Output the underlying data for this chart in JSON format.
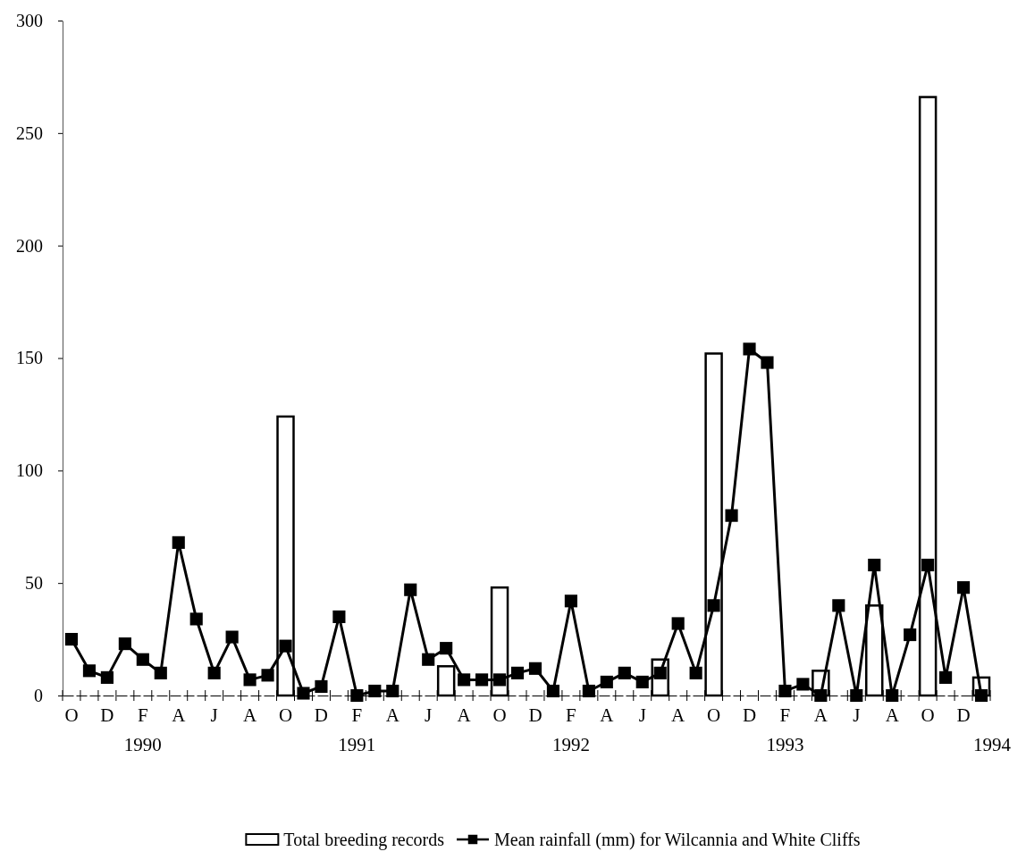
{
  "chart_data": {
    "type": "bar",
    "categories": [
      "O",
      null,
      "D",
      null,
      "F",
      null,
      "A",
      null,
      "J",
      null,
      "A",
      null,
      "O",
      null,
      "D",
      null,
      "F",
      null,
      "A",
      null,
      "J",
      null,
      "A",
      null,
      "O",
      null,
      "D",
      null,
      "F",
      null,
      "A",
      null,
      "J",
      null,
      "A",
      null,
      "O",
      null,
      "D",
      null,
      "F",
      null,
      "A",
      null,
      "J",
      null,
      "A",
      null,
      "O",
      null,
      "D",
      null
    ],
    "ylim": [
      0,
      300
    ],
    "yticks": [
      0,
      50,
      100,
      150,
      200,
      250,
      300
    ],
    "grid": false,
    "legend": "bottom",
    "marker": "square",
    "line_style": "solid",
    "annotations": [
      "1990",
      "1991",
      "1992",
      "1993",
      "1994"
    ],
    "series": [
      {
        "name": "Total breeding records",
        "color": "#ffffff",
        "values": [
          0,
          0,
          0,
          0,
          0,
          0,
          0,
          0,
          0,
          0,
          0,
          0,
          124,
          0,
          0,
          0,
          0,
          0,
          0,
          0,
          0,
          13,
          0,
          0,
          48,
          0,
          0,
          0,
          0,
          0,
          0,
          0,
          0,
          16,
          0,
          0,
          152,
          0,
          0,
          0,
          0,
          0,
          11,
          0,
          0,
          40,
          0,
          0,
          266,
          0,
          0,
          8
        ]
      },
      {
        "name": "Mean rainfall (mm) for Wilcannia and White Cliffs",
        "type": "line",
        "color": "#000000",
        "values": [
          25,
          11,
          8,
          23,
          16,
          10,
          68,
          34,
          10,
          26,
          7,
          9,
          22,
          1,
          4,
          35,
          0,
          2,
          2,
          47,
          16,
          21,
          7,
          7,
          7,
          10,
          12,
          2,
          42,
          2,
          6,
          10,
          6,
          10,
          32,
          10,
          40,
          80,
          154,
          148,
          2,
          5,
          0,
          40,
          0,
          58,
          0,
          27,
          58,
          8,
          48,
          0
        ]
      }
    ]
  }
}
